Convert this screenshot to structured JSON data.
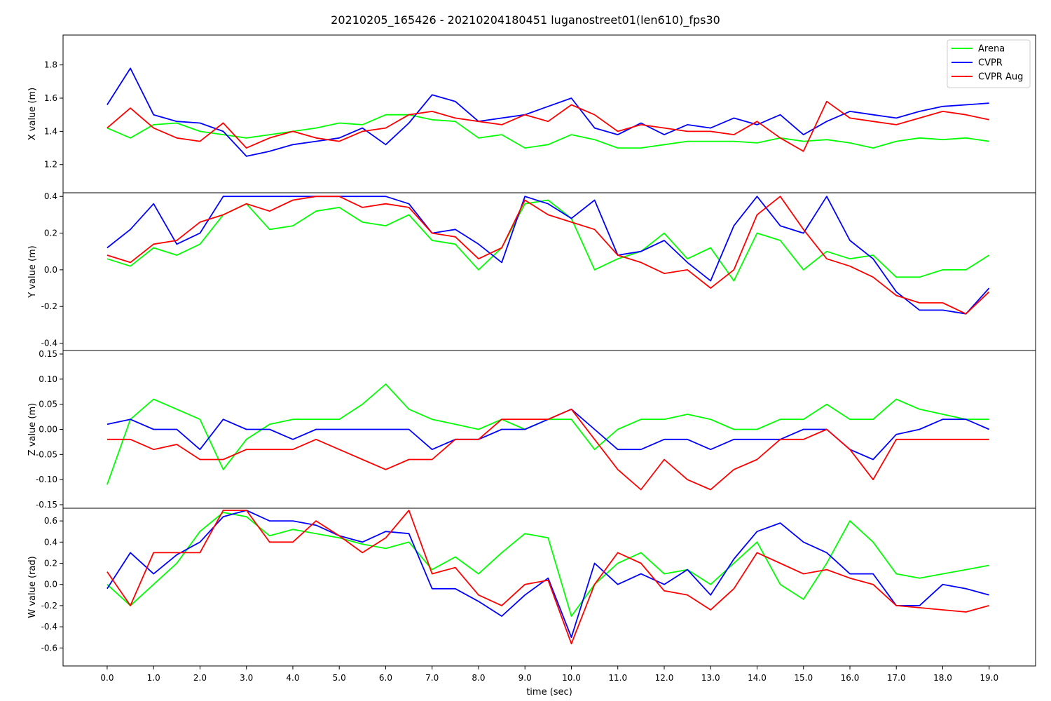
{
  "chart_data": {
    "type": "line",
    "title": "20210205_165426 - 20210204180451 luganostreet01(len610)_fps30",
    "xlabel": "time (sec)",
    "x_ticks": [
      "0.0",
      "1.0",
      "2.0",
      "3.0",
      "4.0",
      "5.0",
      "6.0",
      "7.0",
      "8.0",
      "9.0",
      "10.0",
      "11.0",
      "12.0",
      "13.0",
      "14.0",
      "15.0",
      "16.0",
      "17.0",
      "18.0",
      "19.0"
    ],
    "xlim": [
      -0.95,
      20.0
    ],
    "grid": false,
    "legend": {
      "placement": "top-right",
      "entries": [
        "Arena",
        "CVPR",
        "CVPR Aug"
      ]
    },
    "colors": {
      "Arena": "#00ff00",
      "CVPR": "#0000ff",
      "CVPR Aug": "#ff0000"
    },
    "x": [
      0,
      0.5,
      1,
      1.5,
      2,
      2.5,
      3,
      3.5,
      4,
      4.5,
      5,
      5.5,
      6,
      6.5,
      7,
      7.5,
      8,
      8.5,
      9,
      9.5,
      10,
      10.5,
      11,
      11.5,
      12,
      12.5,
      13,
      13.5,
      14,
      14.5,
      15,
      15.5,
      16,
      16.5,
      17,
      17.5,
      18,
      18.5,
      19
    ],
    "panels": [
      {
        "ylabel": "X value (m)",
        "ylim": [
          1.03,
          1.98
        ],
        "y_ticks": [
          "1.2",
          "1.4",
          "1.6",
          "1.8"
        ],
        "series": [
          {
            "name": "Arena",
            "values": [
              1.42,
              1.36,
              1.44,
              1.45,
              1.4,
              1.38,
              1.36,
              1.38,
              1.4,
              1.42,
              1.45,
              1.44,
              1.5,
              1.5,
              1.47,
              1.46,
              1.36,
              1.38,
              1.3,
              1.32,
              1.38,
              1.35,
              1.3,
              1.3,
              1.32,
              1.34,
              1.34,
              1.34,
              1.33,
              1.36,
              1.34,
              1.35,
              1.33,
              1.3,
              1.34,
              1.36,
              1.35,
              1.36,
              1.34
            ]
          },
          {
            "name": "CVPR",
            "values": [
              1.56,
              1.78,
              1.5,
              1.46,
              1.45,
              1.4,
              1.25,
              1.28,
              1.32,
              1.34,
              1.36,
              1.42,
              1.32,
              1.45,
              1.62,
              1.58,
              1.46,
              1.48,
              1.5,
              1.55,
              1.6,
              1.42,
              1.38,
              1.45,
              1.38,
              1.44,
              1.42,
              1.48,
              1.44,
              1.5,
              1.38,
              1.46,
              1.52,
              1.5,
              1.48,
              1.52,
              1.55,
              1.56,
              1.57
            ]
          },
          {
            "name": "CVPR Aug",
            "values": [
              1.42,
              1.54,
              1.42,
              1.36,
              1.34,
              1.45,
              1.3,
              1.36,
              1.4,
              1.36,
              1.34,
              1.4,
              1.42,
              1.5,
              1.52,
              1.48,
              1.46,
              1.44,
              1.5,
              1.46,
              1.56,
              1.5,
              1.4,
              1.44,
              1.42,
              1.4,
              1.4,
              1.38,
              1.46,
              1.36,
              1.28,
              1.58,
              1.48,
              1.46,
              1.44,
              1.48,
              1.52,
              1.5,
              1.47
            ]
          }
        ]
      },
      {
        "ylabel": "Y value (m)",
        "ylim": [
          -0.44,
          0.42
        ],
        "y_ticks": [
          "-0.4",
          "-0.2",
          "0.0",
          "0.2",
          "0.4"
        ],
        "series": [
          {
            "name": "Arena",
            "values": [
              0.06,
              0.02,
              0.12,
              0.08,
              0.14,
              0.3,
              0.36,
              0.22,
              0.24,
              0.32,
              0.34,
              0.26,
              0.24,
              0.3,
              0.16,
              0.14,
              0.0,
              0.12,
              0.36,
              0.38,
              0.28,
              0.0,
              0.06,
              0.1,
              0.2,
              0.06,
              0.12,
              -0.06,
              0.2,
              0.16,
              0.0,
              0.1,
              0.06,
              0.08,
              -0.04,
              -0.04,
              0.0,
              0.0,
              0.08
            ]
          },
          {
            "name": "CVPR",
            "values": [
              0.12,
              0.22,
              0.36,
              0.14,
              0.2,
              0.4,
              0.4,
              0.4,
              0.4,
              0.4,
              0.4,
              0.4,
              0.4,
              0.36,
              0.2,
              0.22,
              0.14,
              0.04,
              0.4,
              0.36,
              0.28,
              0.38,
              0.08,
              0.1,
              0.16,
              0.04,
              -0.06,
              0.24,
              0.4,
              0.24,
              0.2,
              0.4,
              0.16,
              0.06,
              -0.12,
              -0.22,
              -0.22,
              -0.24,
              -0.1
            ]
          },
          {
            "name": "CVPR Aug",
            "values": [
              0.08,
              0.04,
              0.14,
              0.16,
              0.26,
              0.3,
              0.36,
              0.32,
              0.38,
              0.4,
              0.4,
              0.34,
              0.36,
              0.34,
              0.2,
              0.18,
              0.06,
              0.12,
              0.38,
              0.3,
              0.26,
              0.22,
              0.08,
              0.04,
              -0.02,
              0.0,
              -0.1,
              0.0,
              0.3,
              0.4,
              0.22,
              0.06,
              0.02,
              -0.04,
              -0.14,
              -0.18,
              -0.18,
              -0.24,
              -0.12
            ]
          }
        ]
      },
      {
        "ylabel": "Z value (m)",
        "ylim": [
          -0.157,
          0.157
        ],
        "y_ticks": [
          "-0.15",
          "-0.10",
          "-0.05",
          "0.00",
          "0.05",
          "0.10",
          "0.15"
        ],
        "series": [
          {
            "name": "Arena",
            "values": [
              -0.11,
              0.02,
              0.06,
              0.04,
              0.02,
              -0.08,
              -0.02,
              0.01,
              0.02,
              0.02,
              0.02,
              0.05,
              0.09,
              0.04,
              0.02,
              0.01,
              0.0,
              0.02,
              0.0,
              0.02,
              0.02,
              -0.04,
              0.0,
              0.02,
              0.02,
              0.03,
              0.02,
              0.0,
              0.0,
              0.02,
              0.02,
              0.05,
              0.02,
              0.02,
              0.06,
              0.04,
              0.03,
              0.02,
              0.02
            ]
          },
          {
            "name": "CVPR",
            "values": [
              0.01,
              0.02,
              0.0,
              0.0,
              -0.04,
              0.02,
              0.0,
              0.0,
              -0.02,
              0.0,
              0.0,
              0.0,
              0.0,
              0.0,
              -0.04,
              -0.02,
              -0.02,
              0.0,
              0.0,
              0.02,
              0.04,
              0.0,
              -0.04,
              -0.04,
              -0.02,
              -0.02,
              -0.04,
              -0.02,
              -0.02,
              -0.02,
              0.0,
              0.0,
              -0.04,
              -0.06,
              -0.01,
              0.0,
              0.02,
              0.02,
              0.0
            ]
          },
          {
            "name": "CVPR Aug",
            "values": [
              -0.02,
              -0.02,
              -0.04,
              -0.03,
              -0.06,
              -0.06,
              -0.04,
              -0.04,
              -0.04,
              -0.02,
              -0.04,
              -0.06,
              -0.08,
              -0.06,
              -0.06,
              -0.02,
              -0.02,
              0.02,
              0.02,
              0.02,
              0.04,
              -0.02,
              -0.08,
              -0.12,
              -0.06,
              -0.1,
              -0.12,
              -0.08,
              -0.06,
              -0.02,
              -0.02,
              0.0,
              -0.04,
              -0.1,
              -0.02,
              -0.02,
              -0.02,
              -0.02,
              -0.02
            ]
          }
        ]
      },
      {
        "ylabel": "W value (rad)",
        "ylim": [
          -0.77,
          0.72
        ],
        "y_ticks": [
          "-0.6",
          "-0.4",
          "-0.2",
          "0.0",
          "0.2",
          "0.4",
          "0.6"
        ],
        "series": [
          {
            "name": "Arena",
            "values": [
              0.0,
              -0.2,
              0.0,
              0.2,
              0.5,
              0.68,
              0.64,
              0.46,
              0.52,
              0.48,
              0.44,
              0.38,
              0.34,
              0.4,
              0.14,
              0.26,
              0.1,
              0.3,
              0.48,
              0.44,
              -0.3,
              0.0,
              0.2,
              0.3,
              0.1,
              0.14,
              0.0,
              0.2,
              0.4,
              0.0,
              -0.14,
              0.2,
              0.6,
              0.4,
              0.1,
              0.06,
              0.1,
              0.14,
              0.18
            ]
          },
          {
            "name": "CVPR",
            "values": [
              -0.04,
              0.3,
              0.1,
              0.28,
              0.4,
              0.64,
              0.7,
              0.6,
              0.6,
              0.56,
              0.46,
              0.4,
              0.5,
              0.48,
              -0.04,
              -0.04,
              -0.16,
              -0.3,
              -0.1,
              0.06,
              -0.5,
              0.2,
              0.0,
              0.1,
              0.0,
              0.14,
              -0.1,
              0.24,
              0.5,
              0.58,
              0.4,
              0.3,
              0.1,
              0.1,
              -0.2,
              -0.2,
              0.0,
              -0.04,
              -0.1
            ]
          },
          {
            "name": "CVPR Aug",
            "values": [
              0.12,
              -0.2,
              0.3,
              0.3,
              0.3,
              0.7,
              0.7,
              0.4,
              0.4,
              0.6,
              0.46,
              0.3,
              0.44,
              0.7,
              0.1,
              0.16,
              -0.1,
              -0.2,
              0.0,
              0.04,
              -0.56,
              0.0,
              0.3,
              0.2,
              -0.06,
              -0.1,
              -0.24,
              -0.04,
              0.3,
              0.2,
              0.1,
              0.14,
              0.06,
              0.0,
              -0.2,
              -0.22,
              -0.24,
              -0.26,
              -0.2
            ]
          }
        ]
      }
    ]
  }
}
